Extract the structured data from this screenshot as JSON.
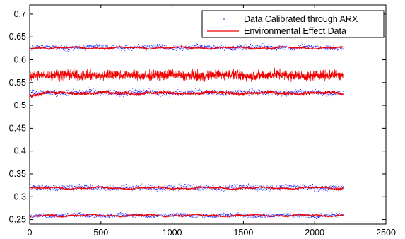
{
  "chart_data": {
    "type": "line",
    "title": "",
    "xlabel": "",
    "ylabel": "",
    "xlim": [
      0,
      2500
    ],
    "ylim": [
      0.24,
      0.72
    ],
    "x_ticks": [
      0,
      500,
      1000,
      1500,
      2000,
      2500
    ],
    "y_ticks": [
      0.25,
      0.3,
      0.35,
      0.4,
      0.45,
      0.5,
      0.55,
      0.6,
      0.65,
      0.7
    ],
    "x_tick_labels": [
      "0",
      "500",
      "1000",
      "1500",
      "2000",
      "2500"
    ],
    "y_tick_labels": [
      "0.25",
      "0.3",
      "0.35",
      "0.4",
      "0.45",
      "0.5",
      "0.55",
      "0.6",
      "0.65",
      "0.7"
    ],
    "grid": false,
    "legend_position": "top-right",
    "series": [
      {
        "name": "Data Calibrated through ARX",
        "style": "dots",
        "color": "#1a1aff",
        "x_range": [
          0,
          2200
        ],
        "bands": [
          {
            "start": 0.625,
            "level": 0.627,
            "spread": 0.006
          },
          {
            "start": 0.53,
            "level": 0.528,
            "spread": 0.007
          },
          {
            "start": 0.322,
            "level": 0.32,
            "spread": 0.007
          },
          {
            "start": 0.258,
            "level": 0.259,
            "spread": 0.005
          }
        ]
      },
      {
        "name": "Environmental Effect Data",
        "style": "line",
        "color": "#ee0000",
        "x_range": [
          0,
          2200
        ],
        "bands": [
          {
            "start": 0.625,
            "level": 0.626,
            "spread": 0.002
          },
          {
            "start": 0.565,
            "level": 0.566,
            "spread": 0.016
          },
          {
            "start": 0.52,
            "level": 0.527,
            "spread": 0.005
          },
          {
            "start": 0.32,
            "level": 0.319,
            "spread": 0.002
          },
          {
            "start": 0.257,
            "level": 0.259,
            "spread": 0.002
          }
        ]
      }
    ]
  }
}
